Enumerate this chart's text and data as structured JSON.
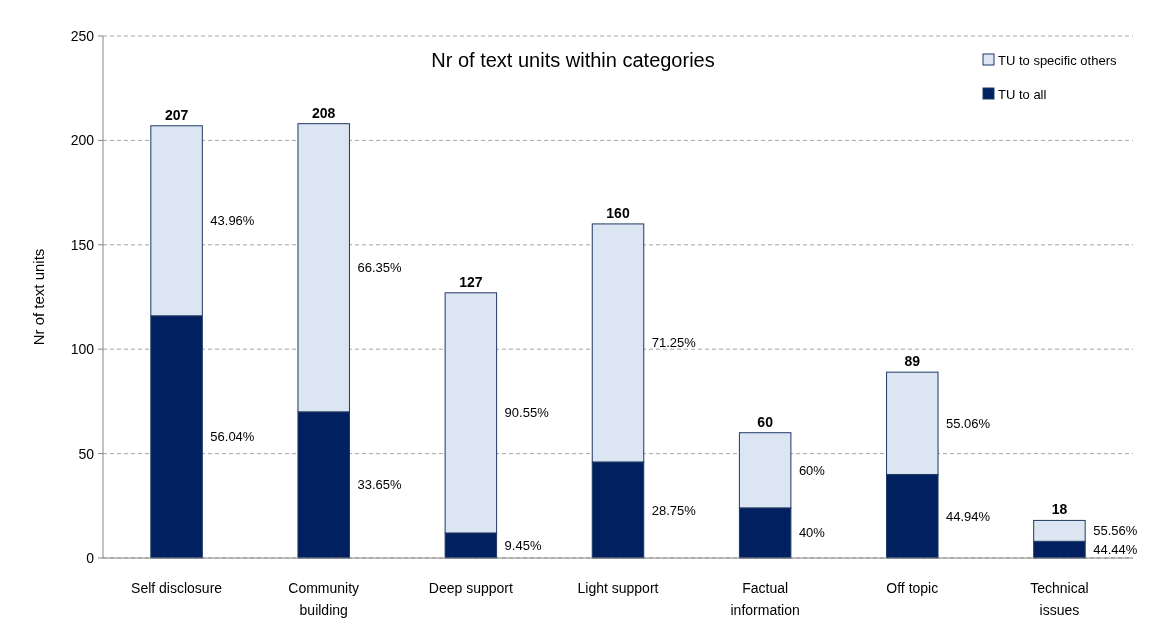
{
  "chart_data": {
    "type": "bar",
    "title": "Nr of text units within categories",
    "ylabel": "Nr of text units",
    "categories": [
      "Self disclosure",
      "Community building",
      "Deep support",
      "Light support",
      "Factual information",
      "Off topic",
      "Technical issues"
    ],
    "stacked": true,
    "series": [
      {
        "name": "TU to all",
        "color": "#002060",
        "values": [
          116,
          70,
          12,
          46,
          24,
          40,
          8
        ]
      },
      {
        "name": "TU to specific others",
        "color": "#dce6f2",
        "values": [
          91,
          138,
          115,
          114,
          36,
          49,
          10
        ]
      }
    ],
    "totals": [
      "207",
      "208",
      "127",
      "160",
      "60",
      "89",
      "18"
    ],
    "annotations": [
      "56.04%",
      "43.96%",
      "33.65%",
      "66.35%",
      "9.45%",
      "90.55%",
      "28.75%",
      "71.25%",
      "40%",
      "60%",
      "44.94%",
      "55.06%",
      "44.44%",
      "55.56%"
    ],
    "ylim": [
      0,
      250
    ],
    "yticks": [
      0,
      50,
      100,
      150,
      200,
      250
    ],
    "grid": "y",
    "legend": "top right"
  }
}
